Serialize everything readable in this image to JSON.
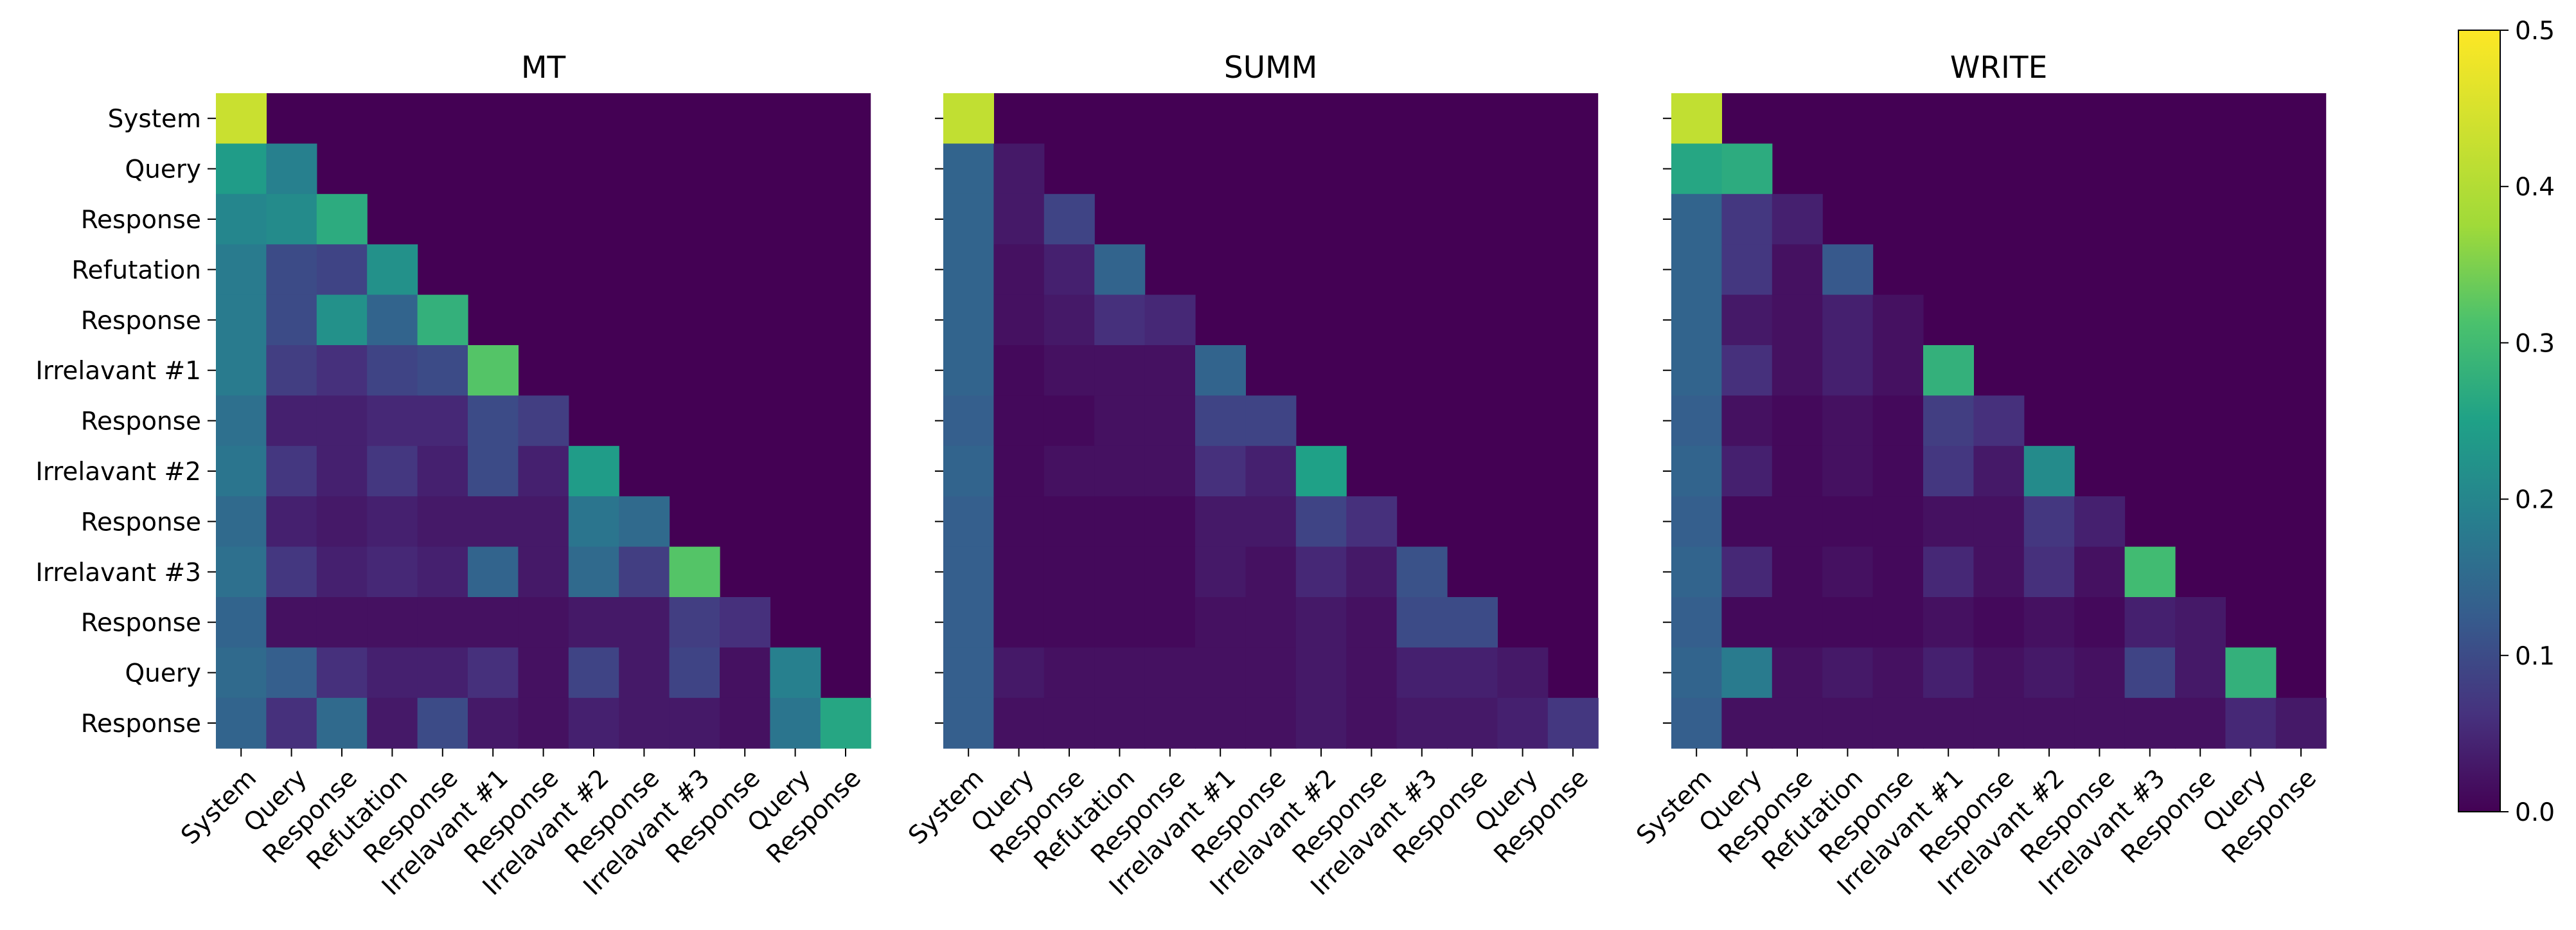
{
  "chart_data": {
    "type": "heatmap",
    "colormap": "viridis",
    "vmin": 0.0,
    "vmax": 0.5,
    "colorbar_ticks": [
      "0.0",
      "0.1",
      "0.2",
      "0.3",
      "0.4",
      "0.5"
    ],
    "row_labels": [
      "System",
      "Query",
      "Response",
      "Refutation",
      "Response",
      "Irrelavant #1",
      "Response",
      "Irrelavant #2",
      "Response",
      "Irrelavant #3",
      "Response",
      "Query",
      "Response"
    ],
    "col_labels": [
      "System",
      "Query",
      "Response",
      "Refutation",
      "Response",
      "Irrelavant #1",
      "Response",
      "Irrelavant #2",
      "Response",
      "Irrelavant #3",
      "Response",
      "Query",
      "Response"
    ],
    "panels": [
      {
        "title": "MT",
        "values": [
          [
            0.43
          ],
          [
            0.24,
            0.19
          ],
          [
            0.2,
            0.21,
            0.27
          ],
          [
            0.18,
            0.1,
            0.09,
            0.22
          ],
          [
            0.18,
            0.1,
            0.22,
            0.14,
            0.28
          ],
          [
            0.18,
            0.08,
            0.06,
            0.09,
            0.1,
            0.32
          ],
          [
            0.16,
            0.04,
            0.04,
            0.05,
            0.05,
            0.1,
            0.08
          ],
          [
            0.17,
            0.07,
            0.04,
            0.07,
            0.04,
            0.1,
            0.04,
            0.24
          ],
          [
            0.15,
            0.04,
            0.03,
            0.04,
            0.03,
            0.03,
            0.03,
            0.17,
            0.15
          ],
          [
            0.16,
            0.07,
            0.04,
            0.05,
            0.04,
            0.14,
            0.03,
            0.15,
            0.08,
            0.32
          ],
          [
            0.14,
            0.02,
            0.02,
            0.02,
            0.02,
            0.02,
            0.02,
            0.03,
            0.03,
            0.08,
            0.06
          ],
          [
            0.15,
            0.13,
            0.06,
            0.04,
            0.04,
            0.06,
            0.02,
            0.09,
            0.03,
            0.09,
            0.02,
            0.19
          ],
          [
            0.14,
            0.06,
            0.15,
            0.03,
            0.1,
            0.03,
            0.02,
            0.04,
            0.03,
            0.03,
            0.02,
            0.17,
            0.26
          ]
        ]
      },
      {
        "title": "SUMM",
        "values": [
          [
            0.42
          ],
          [
            0.14,
            0.03
          ],
          [
            0.14,
            0.03,
            0.09
          ],
          [
            0.14,
            0.02,
            0.04,
            0.14
          ],
          [
            0.14,
            0.02,
            0.03,
            0.06,
            0.05
          ],
          [
            0.14,
            0.01,
            0.02,
            0.02,
            0.02,
            0.14
          ],
          [
            0.13,
            0.01,
            0.01,
            0.02,
            0.02,
            0.09,
            0.09
          ],
          [
            0.14,
            0.01,
            0.02,
            0.02,
            0.02,
            0.06,
            0.04,
            0.25
          ],
          [
            0.13,
            0.01,
            0.01,
            0.01,
            0.01,
            0.03,
            0.03,
            0.09,
            0.06
          ],
          [
            0.13,
            0.01,
            0.01,
            0.01,
            0.01,
            0.03,
            0.02,
            0.05,
            0.03,
            0.11
          ],
          [
            0.13,
            0.01,
            0.01,
            0.01,
            0.01,
            0.02,
            0.02,
            0.03,
            0.02,
            0.1,
            0.1
          ],
          [
            0.13,
            0.03,
            0.02,
            0.02,
            0.02,
            0.02,
            0.02,
            0.03,
            0.02,
            0.04,
            0.04,
            0.03
          ],
          [
            0.13,
            0.02,
            0.02,
            0.02,
            0.02,
            0.02,
            0.02,
            0.03,
            0.02,
            0.03,
            0.03,
            0.04,
            0.07
          ]
        ]
      },
      {
        "title": "WRITE",
        "values": [
          [
            0.42
          ],
          [
            0.26,
            0.27
          ],
          [
            0.14,
            0.07,
            0.04
          ],
          [
            0.14,
            0.07,
            0.02,
            0.12
          ],
          [
            0.14,
            0.03,
            0.02,
            0.04,
            0.02
          ],
          [
            0.14,
            0.06,
            0.02,
            0.04,
            0.02,
            0.28
          ],
          [
            0.13,
            0.02,
            0.01,
            0.02,
            0.01,
            0.08,
            0.06
          ],
          [
            0.14,
            0.04,
            0.01,
            0.02,
            0.01,
            0.07,
            0.03,
            0.21
          ],
          [
            0.13,
            0.01,
            0.01,
            0.01,
            0.01,
            0.02,
            0.02,
            0.07,
            0.04
          ],
          [
            0.14,
            0.05,
            0.01,
            0.02,
            0.01,
            0.05,
            0.02,
            0.06,
            0.02,
            0.3
          ],
          [
            0.13,
            0.01,
            0.01,
            0.01,
            0.01,
            0.02,
            0.01,
            0.02,
            0.01,
            0.04,
            0.03
          ],
          [
            0.14,
            0.18,
            0.02,
            0.03,
            0.02,
            0.04,
            0.02,
            0.03,
            0.02,
            0.09,
            0.03,
            0.28
          ],
          [
            0.13,
            0.02,
            0.02,
            0.02,
            0.02,
            0.02,
            0.02,
            0.02,
            0.02,
            0.02,
            0.02,
            0.05,
            0.03
          ]
        ]
      }
    ]
  }
}
